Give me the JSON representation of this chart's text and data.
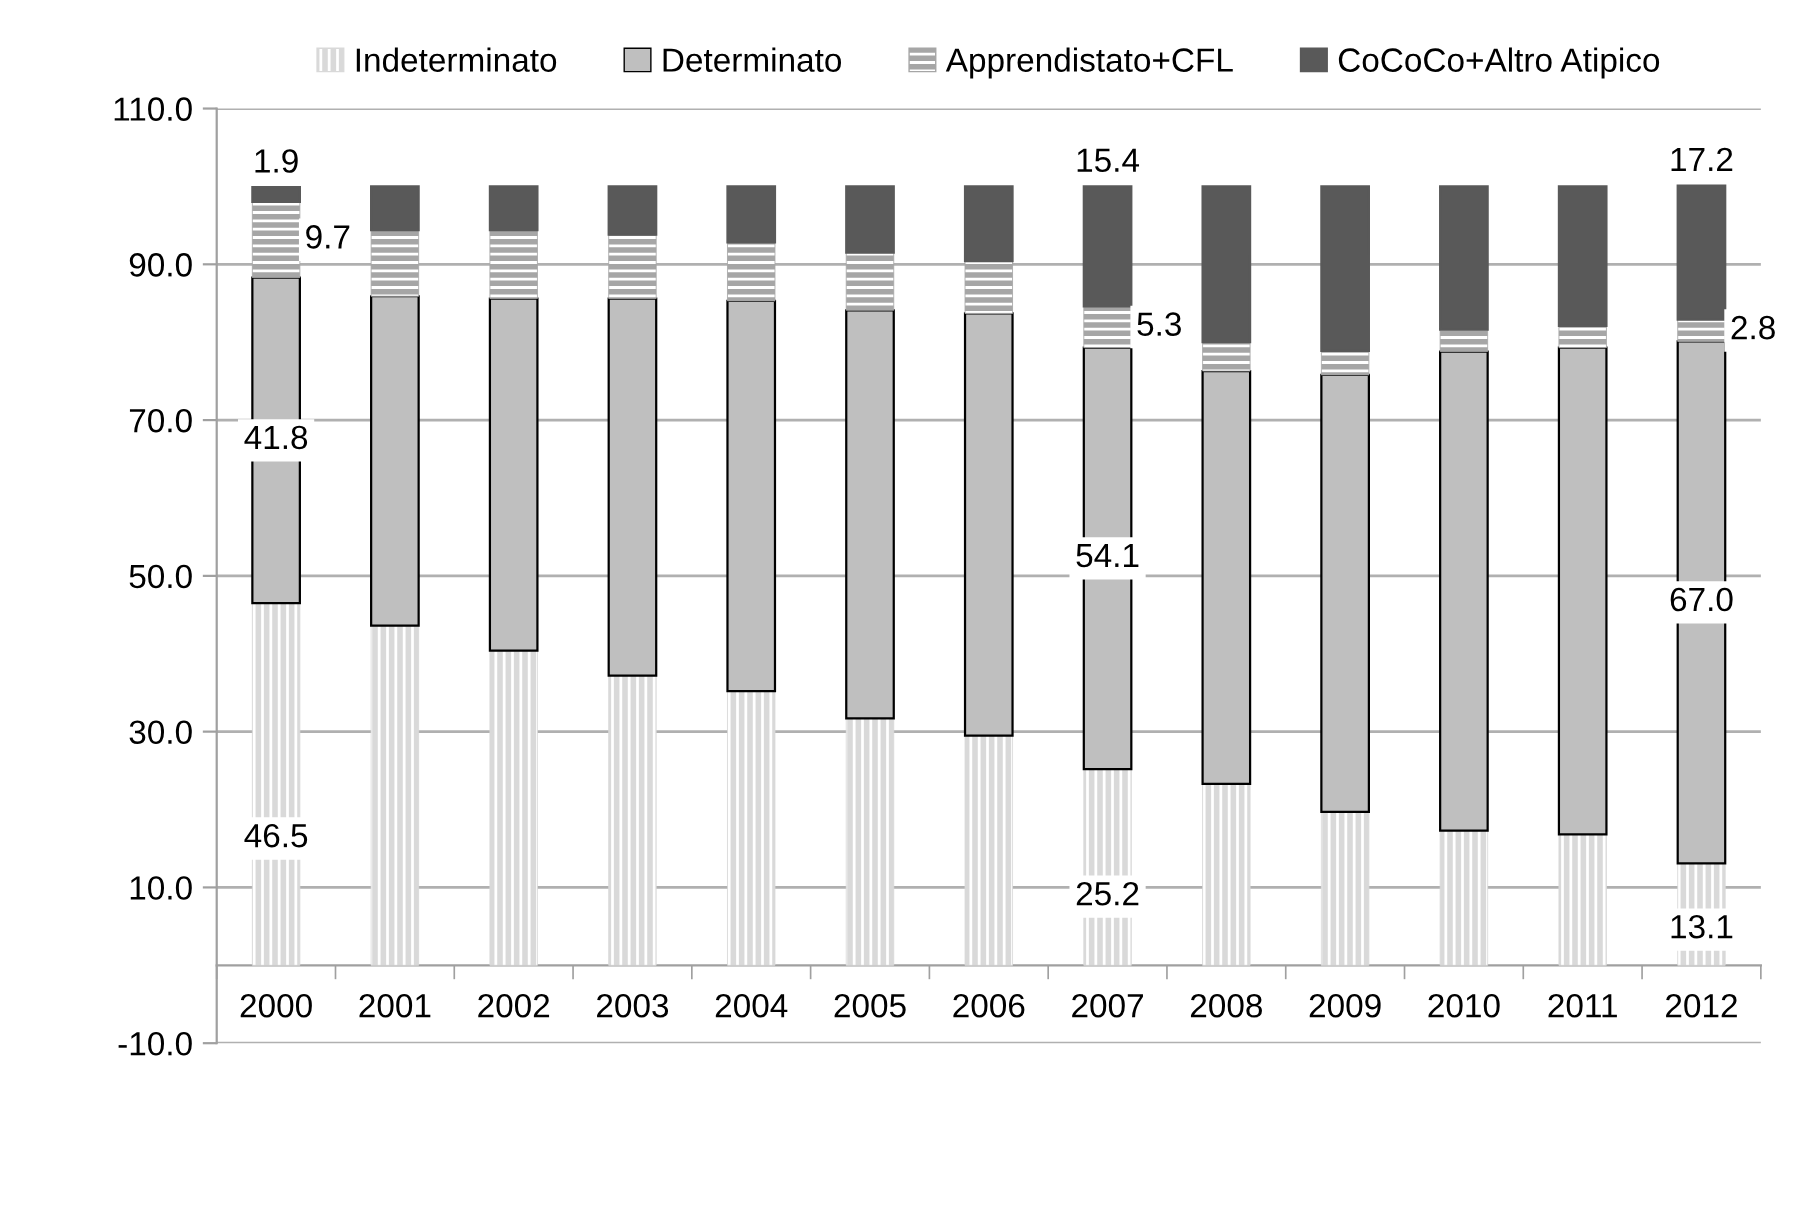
{
  "chart_data": {
    "type": "bar",
    "stacked": true,
    "categories": [
      "2000",
      "2001",
      "2002",
      "2003",
      "2004",
      "2005",
      "2006",
      "2007",
      "2008",
      "2009",
      "2010",
      "2011",
      "2012"
    ],
    "series": [
      {
        "name": "Indeterminato",
        "color": "#d9d9d9",
        "values": [
          46.5,
          43.6,
          40.4,
          37.2,
          35.2,
          31.7,
          29.5,
          25.2,
          23.3,
          19.7,
          17.3,
          16.8,
          13.1
        ],
        "value_labels": [
          "46.5",
          null,
          null,
          null,
          null,
          null,
          null,
          "25.2",
          null,
          null,
          null,
          null,
          "13.1"
        ]
      },
      {
        "name": "Determinato",
        "color": "#bfbfbf",
        "values": [
          41.8,
          42.3,
          45.2,
          48.4,
          50.1,
          52.4,
          54.2,
          54.1,
          53.0,
          56.1,
          61.5,
          62.5,
          67.0
        ],
        "value_labels": [
          "41.8",
          null,
          null,
          null,
          null,
          null,
          null,
          "54.1",
          null,
          null,
          null,
          null,
          "67.0"
        ]
      },
      {
        "name": "Apprendistato+CFL",
        "color": "#a6a6a6",
        "values": [
          9.7,
          8.5,
          8.8,
          8.2,
          7.5,
          7.4,
          6.7,
          5.3,
          3.7,
          3.1,
          2.8,
          2.8,
          2.8
        ],
        "value_labels": [
          "9.7",
          null,
          null,
          null,
          null,
          null,
          null,
          "5.3",
          null,
          null,
          null,
          null,
          "2.8"
        ]
      },
      {
        "name": "CoCoCo+Altro Atipico",
        "color": "#595959",
        "values": [
          1.9,
          5.6,
          5.6,
          6.2,
          7.2,
          8.5,
          9.6,
          15.4,
          20.0,
          21.1,
          18.4,
          17.9,
          17.2
        ],
        "value_labels": [
          "1.9",
          null,
          null,
          null,
          null,
          null,
          null,
          "15.4",
          null,
          null,
          null,
          null,
          "17.2"
        ]
      }
    ],
    "ylim": [
      -10,
      110
    ],
    "yticks": [
      {
        "value": -10,
        "label": "-10.0"
      },
      {
        "value": 10,
        "label": "10.0"
      },
      {
        "value": 30,
        "label": "30.0"
      },
      {
        "value": 50,
        "label": "50.0"
      },
      {
        "value": 70,
        "label": "70.0"
      },
      {
        "value": 90,
        "label": "90.0"
      },
      {
        "value": 110,
        "label": "110.0"
      }
    ],
    "grid": "y",
    "legend": "top"
  }
}
